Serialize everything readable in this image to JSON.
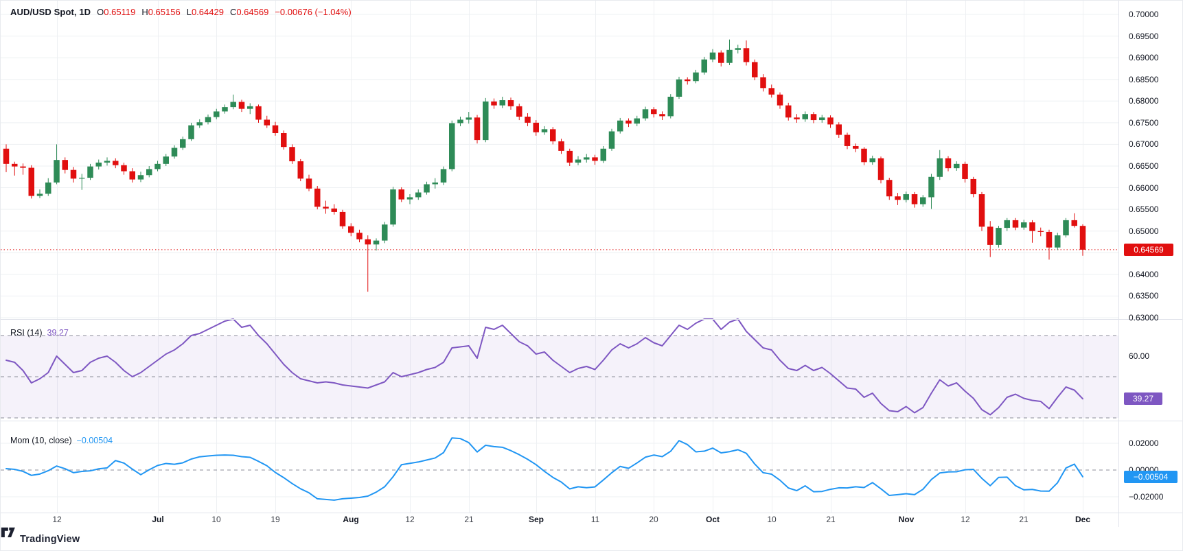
{
  "legend": {
    "symbol": "AUD/USD Spot, 1D",
    "o_label": "O",
    "o_value": "0.65119",
    "h_label": "H",
    "h_value": "0.65156",
    "l_label": "L",
    "l_value": "0.64429",
    "c_label": "C",
    "c_value": "0.64569",
    "change": "−0.00676 (−1.04%)"
  },
  "rsi_pane": {
    "label": "RSI (14)",
    "value": "39.27",
    "badge": "39.27",
    "axis_label": "60.00"
  },
  "mom_pane": {
    "label": "Mom (10, close)",
    "value": "−0.00504",
    "badge": "−0.00504"
  },
  "price_axis": {
    "badge": "0.64569",
    "labels": [
      {
        "text": "0.70000",
        "value": 0.7
      },
      {
        "text": "0.69500",
        "value": 0.695
      },
      {
        "text": "0.69000",
        "value": 0.69
      },
      {
        "text": "0.68500",
        "value": 0.685
      },
      {
        "text": "0.68000",
        "value": 0.68
      },
      {
        "text": "0.67500",
        "value": 0.675
      },
      {
        "text": "0.67000",
        "value": 0.67
      },
      {
        "text": "0.66500",
        "value": 0.665
      },
      {
        "text": "0.66000",
        "value": 0.66
      },
      {
        "text": "0.65500",
        "value": 0.655
      },
      {
        "text": "0.65000",
        "value": 0.65
      },
      {
        "text": "0.64000",
        "value": 0.64
      },
      {
        "text": "0.63500",
        "value": 0.635
      },
      {
        "text": "0.63000",
        "value": 0.63
      }
    ]
  },
  "mom_axis": [
    {
      "text": "0.02000",
      "value": 0.02
    },
    {
      "text": "0.00000",
      "value": 0.0
    },
    {
      "text": "−0.02000",
      "value": -0.02
    }
  ],
  "footer": {
    "brand": "TradingView"
  },
  "colors": {
    "up": "#2e8b57",
    "down": "#e10f0f",
    "rsi": "#7e57c2",
    "rsi_band": "rgba(126,87,194,0.08)",
    "mom": "#2196f3",
    "grid": "#eef0f3",
    "dashed": "#8b8e98",
    "text": "#131722",
    "divider": "#e0e3eb"
  },
  "chart_data": {
    "type": "candlestick",
    "title": "AUD/USD Spot, 1D",
    "symbol": "AUD/USD Spot",
    "timeframe": "1D",
    "last_ohlc": {
      "open": 0.65119,
      "high": 0.65156,
      "low": 0.64429,
      "close": 0.64569,
      "change": -0.00676,
      "change_pct": -1.04
    },
    "price_range": [
      0.63,
      0.7
    ],
    "price_line": 0.64569,
    "legend_position": "top-left",
    "grid": true,
    "time_labels": [
      {
        "text": "12",
        "index": 6,
        "month": false
      },
      {
        "text": "Jul",
        "index": 18,
        "month": true
      },
      {
        "text": "10",
        "index": 25,
        "month": false
      },
      {
        "text": "19",
        "index": 32,
        "month": false
      },
      {
        "text": "Aug",
        "index": 41,
        "month": true
      },
      {
        "text": "12",
        "index": 48,
        "month": false
      },
      {
        "text": "21",
        "index": 55,
        "month": false
      },
      {
        "text": "Sep",
        "index": 63,
        "month": true
      },
      {
        "text": "11",
        "index": 70,
        "month": false
      },
      {
        "text": "20",
        "index": 77,
        "month": false
      },
      {
        "text": "Oct",
        "index": 84,
        "month": true
      },
      {
        "text": "10",
        "index": 91,
        "month": false
      },
      {
        "text": "21",
        "index": 98,
        "month": false
      },
      {
        "text": "Nov",
        "index": 107,
        "month": true
      },
      {
        "text": "12",
        "index": 114,
        "month": false
      },
      {
        "text": "21",
        "index": 121,
        "month": false
      },
      {
        "text": "Dec",
        "index": 128,
        "month": true
      }
    ],
    "candles": [
      [
        0.669,
        0.67,
        0.6636,
        0.6655
      ],
      [
        0.6655,
        0.666,
        0.6628,
        0.6649
      ],
      [
        0.6649,
        0.6656,
        0.663,
        0.6646
      ],
      [
        0.6646,
        0.6652,
        0.6575,
        0.6581
      ],
      [
        0.6581,
        0.6596,
        0.6576,
        0.6586
      ],
      [
        0.6586,
        0.6622,
        0.6581,
        0.6612
      ],
      [
        0.6612,
        0.67,
        0.6608,
        0.6664
      ],
      [
        0.6664,
        0.667,
        0.6633,
        0.6641
      ],
      [
        0.6641,
        0.6648,
        0.6612,
        0.6621
      ],
      [
        0.6621,
        0.6632,
        0.6595,
        0.6623
      ],
      [
        0.6623,
        0.6655,
        0.6618,
        0.6649
      ],
      [
        0.6649,
        0.6665,
        0.6642,
        0.6658
      ],
      [
        0.6658,
        0.667,
        0.6651,
        0.6662
      ],
      [
        0.6662,
        0.6668,
        0.6645,
        0.6652
      ],
      [
        0.6652,
        0.6658,
        0.663,
        0.6638
      ],
      [
        0.6638,
        0.6645,
        0.6612,
        0.6619
      ],
      [
        0.6619,
        0.6637,
        0.6613,
        0.6629
      ],
      [
        0.6629,
        0.665,
        0.6624,
        0.6643
      ],
      [
        0.6643,
        0.6662,
        0.6638,
        0.6655
      ],
      [
        0.6655,
        0.6678,
        0.665,
        0.6672
      ],
      [
        0.6672,
        0.6698,
        0.6667,
        0.6692
      ],
      [
        0.6692,
        0.6718,
        0.6687,
        0.6712
      ],
      [
        0.6712,
        0.675,
        0.6708,
        0.6744
      ],
      [
        0.6744,
        0.6758,
        0.6738,
        0.6751
      ],
      [
        0.6751,
        0.6769,
        0.6746,
        0.6763
      ],
      [
        0.6763,
        0.6782,
        0.6758,
        0.6776
      ],
      [
        0.6776,
        0.6792,
        0.6771,
        0.6786
      ],
      [
        0.6786,
        0.6815,
        0.6781,
        0.6798
      ],
      [
        0.6798,
        0.6803,
        0.6775,
        0.6782
      ],
      [
        0.6782,
        0.6795,
        0.677,
        0.6788
      ],
      [
        0.6788,
        0.6792,
        0.675,
        0.6757
      ],
      [
        0.6757,
        0.6766,
        0.6738,
        0.6744
      ],
      [
        0.6744,
        0.6752,
        0.672,
        0.6726
      ],
      [
        0.6726,
        0.6732,
        0.6688,
        0.6694
      ],
      [
        0.6694,
        0.67,
        0.6655,
        0.6661
      ],
      [
        0.6661,
        0.6666,
        0.6615,
        0.6621
      ],
      [
        0.6621,
        0.663,
        0.6592,
        0.6598
      ],
      [
        0.6598,
        0.6604,
        0.655,
        0.6556
      ],
      [
        0.6556,
        0.657,
        0.654,
        0.6552
      ],
      [
        0.6552,
        0.6562,
        0.6538,
        0.6544
      ],
      [
        0.6544,
        0.6549,
        0.6505,
        0.6511
      ],
      [
        0.6511,
        0.6518,
        0.6488,
        0.6496
      ],
      [
        0.6496,
        0.6503,
        0.6474,
        0.6481
      ],
      [
        0.6481,
        0.649,
        0.636,
        0.6469
      ],
      [
        0.6469,
        0.6483,
        0.6455,
        0.6478
      ],
      [
        0.6478,
        0.6521,
        0.6472,
        0.6515
      ],
      [
        0.6515,
        0.6602,
        0.651,
        0.6596
      ],
      [
        0.6596,
        0.6601,
        0.6567,
        0.6573
      ],
      [
        0.6573,
        0.6585,
        0.6562,
        0.6578
      ],
      [
        0.6578,
        0.6596,
        0.6572,
        0.6589
      ],
      [
        0.6589,
        0.6614,
        0.6584,
        0.6608
      ],
      [
        0.6608,
        0.6622,
        0.6598,
        0.6612
      ],
      [
        0.6612,
        0.6649,
        0.6606,
        0.6643
      ],
      [
        0.6643,
        0.6755,
        0.6638,
        0.6749
      ],
      [
        0.6749,
        0.6764,
        0.6742,
        0.6757
      ],
      [
        0.6757,
        0.6775,
        0.6748,
        0.6762
      ],
      [
        0.6762,
        0.6768,
        0.6702,
        0.671
      ],
      [
        0.671,
        0.6807,
        0.6705,
        0.6799
      ],
      [
        0.6799,
        0.6806,
        0.6782,
        0.679
      ],
      [
        0.679,
        0.681,
        0.6784,
        0.6802
      ],
      [
        0.6802,
        0.6808,
        0.678,
        0.6788
      ],
      [
        0.6788,
        0.6794,
        0.6756,
        0.6764
      ],
      [
        0.6764,
        0.6772,
        0.6742,
        0.675
      ],
      [
        0.675,
        0.6756,
        0.672,
        0.6728
      ],
      [
        0.6728,
        0.6742,
        0.6722,
        0.6735
      ],
      [
        0.6735,
        0.674,
        0.67,
        0.6707
      ],
      [
        0.6707,
        0.6713,
        0.6678,
        0.6685
      ],
      [
        0.6685,
        0.669,
        0.665,
        0.6658
      ],
      [
        0.6658,
        0.6673,
        0.6652,
        0.6665
      ],
      [
        0.6665,
        0.6678,
        0.6658,
        0.667
      ],
      [
        0.667,
        0.6676,
        0.6653,
        0.6662
      ],
      [
        0.6662,
        0.6696,
        0.6657,
        0.669
      ],
      [
        0.669,
        0.6736,
        0.6685,
        0.673
      ],
      [
        0.673,
        0.6761,
        0.6725,
        0.6755
      ],
      [
        0.6755,
        0.676,
        0.674,
        0.6748
      ],
      [
        0.6748,
        0.6766,
        0.6742,
        0.676
      ],
      [
        0.676,
        0.6787,
        0.6755,
        0.6781
      ],
      [
        0.6781,
        0.6786,
        0.6762,
        0.677
      ],
      [
        0.677,
        0.6776,
        0.6756,
        0.6765
      ],
      [
        0.6765,
        0.6816,
        0.676,
        0.681
      ],
      [
        0.681,
        0.6856,
        0.6805,
        0.685
      ],
      [
        0.685,
        0.6855,
        0.6838,
        0.6846
      ],
      [
        0.6846,
        0.6872,
        0.6841,
        0.6866
      ],
      [
        0.6866,
        0.6902,
        0.6861,
        0.6896
      ],
      [
        0.6896,
        0.692,
        0.689,
        0.6912
      ],
      [
        0.6912,
        0.6917,
        0.688,
        0.6888
      ],
      [
        0.6888,
        0.6942,
        0.6883,
        0.6918
      ],
      [
        0.6918,
        0.693,
        0.691,
        0.6922
      ],
      [
        0.6922,
        0.694,
        0.6882,
        0.689
      ],
      [
        0.689,
        0.6896,
        0.6848,
        0.6855
      ],
      [
        0.6855,
        0.6862,
        0.6822,
        0.683
      ],
      [
        0.683,
        0.6838,
        0.6808,
        0.6815
      ],
      [
        0.6815,
        0.682,
        0.6782,
        0.679
      ],
      [
        0.679,
        0.6796,
        0.6755,
        0.6762
      ],
      [
        0.6762,
        0.677,
        0.675,
        0.6758
      ],
      [
        0.6758,
        0.6776,
        0.6752,
        0.677
      ],
      [
        0.677,
        0.6775,
        0.6749,
        0.6756
      ],
      [
        0.6756,
        0.6768,
        0.675,
        0.6762
      ],
      [
        0.6762,
        0.6767,
        0.6738,
        0.6746
      ],
      [
        0.6746,
        0.6751,
        0.6715,
        0.6722
      ],
      [
        0.6722,
        0.6727,
        0.6689,
        0.6696
      ],
      [
        0.6696,
        0.6702,
        0.6682,
        0.669
      ],
      [
        0.669,
        0.6694,
        0.6652,
        0.6659
      ],
      [
        0.6659,
        0.6674,
        0.6653,
        0.6668
      ],
      [
        0.6668,
        0.6672,
        0.661,
        0.6618
      ],
      [
        0.6618,
        0.6623,
        0.6572,
        0.658
      ],
      [
        0.658,
        0.6588,
        0.656,
        0.6572
      ],
      [
        0.6572,
        0.6591,
        0.6566,
        0.6585
      ],
      [
        0.6585,
        0.659,
        0.6554,
        0.6562
      ],
      [
        0.6562,
        0.6583,
        0.6556,
        0.6578
      ],
      [
        0.6578,
        0.6632,
        0.6551,
        0.6625
      ],
      [
        0.6625,
        0.6687,
        0.6618,
        0.6668
      ],
      [
        0.6668,
        0.6673,
        0.6638,
        0.6645
      ],
      [
        0.6645,
        0.6661,
        0.6639,
        0.6655
      ],
      [
        0.6655,
        0.666,
        0.6612,
        0.662
      ],
      [
        0.662,
        0.6625,
        0.6578,
        0.6585
      ],
      [
        0.6585,
        0.659,
        0.65,
        0.651
      ],
      [
        0.651,
        0.6523,
        0.644,
        0.6468
      ],
      [
        0.6468,
        0.6512,
        0.6462,
        0.65073
      ],
      [
        0.65073,
        0.653,
        0.65,
        0.6525
      ],
      [
        0.6525,
        0.653,
        0.6502,
        0.6508
      ],
      [
        0.6508,
        0.6526,
        0.6503,
        0.652
      ],
      [
        0.652,
        0.6525,
        0.6473,
        0.65
      ],
      [
        0.65,
        0.6508,
        0.6488,
        0.6498
      ],
      [
        0.6498,
        0.6503,
        0.6434,
        0.6462
      ],
      [
        0.6462,
        0.6496,
        0.6456,
        0.649
      ],
      [
        0.649,
        0.653,
        0.6485,
        0.6525
      ],
      [
        0.6525,
        0.6541,
        0.6508,
        0.65119
      ],
      [
        0.65119,
        0.65156,
        0.64429,
        0.64569
      ]
    ],
    "rsi": {
      "name": "RSI (14)",
      "current": 39.27,
      "levels": [
        70,
        50,
        30
      ],
      "values": [
        58,
        57,
        53,
        47,
        49,
        52,
        60,
        56,
        52,
        53,
        57,
        59,
        60,
        57,
        53,
        50,
        52,
        55,
        58,
        61,
        63,
        66,
        70,
        71,
        73,
        75,
        77,
        78,
        74,
        75,
        70,
        66,
        61,
        56,
        52,
        49,
        48,
        47,
        47.5,
        47,
        46,
        45.5,
        45,
        44.5,
        46,
        47.5,
        52,
        50,
        51,
        52,
        53.5,
        54.5,
        57,
        64,
        64.5,
        65,
        59,
        74,
        73,
        75,
        71,
        67,
        65,
        61,
        62,
        58,
        55,
        52,
        54,
        55,
        53.5,
        58,
        63,
        66,
        64,
        66,
        69,
        66.5,
        65,
        70,
        75,
        73,
        76,
        78,
        78,
        73,
        76.5,
        78,
        72,
        68,
        64,
        63,
        58,
        54,
        53,
        55.5,
        53,
        54.5,
        51.5,
        48,
        44.5,
        44,
        40,
        42,
        37,
        33.5,
        33,
        35.5,
        32.5,
        35,
        42,
        48.5,
        45.5,
        47,
        43,
        39.5,
        34,
        31.5,
        35,
        40,
        41.5,
        39.5,
        38.5,
        38,
        34.5,
        40,
        45,
        43.5,
        39.27
      ]
    },
    "mom": {
      "name": "Mom (10, close)",
      "current": -0.00504,
      "zero_line": 0,
      "axis_range": [
        -0.02,
        0.02
      ],
      "values": [
        0.001,
        0.0005,
        -0.001,
        -0.004,
        -0.003,
        -0.0005,
        0.003,
        0.001,
        -0.002,
        -0.001,
        -0.0006,
        0.0009,
        0.0016,
        0.0071,
        0.0052,
        0.0007,
        -0.0035,
        0.0002,
        0.0034,
        0.0049,
        0.0043,
        0.0054,
        0.0082,
        0.0099,
        0.0105,
        0.011,
        0.0112,
        0.011,
        0.01,
        0.0095,
        0.0065,
        0.0032,
        -0.0018,
        -0.0057,
        -0.0101,
        -0.014,
        -0.017,
        -0.0215,
        -0.022,
        -0.0225,
        -0.0215,
        -0.021,
        -0.0205,
        -0.0195,
        -0.0165,
        -0.0125,
        -0.005,
        0.004,
        0.005,
        0.006,
        0.0075,
        0.009,
        0.013,
        0.024,
        0.0235,
        0.0205,
        0.0135,
        0.0185,
        0.0175,
        0.017,
        0.0145,
        0.0115,
        0.008,
        0.004,
        -0.001,
        -0.0055,
        -0.009,
        -0.0141,
        -0.0125,
        -0.0132,
        -0.0126,
        -0.0074,
        -0.002,
        0.0027,
        0.0013,
        0.0053,
        0.0096,
        0.0112,
        0.01,
        0.014,
        0.022,
        0.019,
        0.0136,
        0.0141,
        0.0164,
        0.0128,
        0.0137,
        0.0152,
        0.0125,
        0.0045,
        -0.002,
        -0.0031,
        -0.0076,
        -0.0134,
        -0.0154,
        -0.0118,
        -0.0162,
        -0.016,
        -0.0144,
        -0.0133,
        -0.0134,
        -0.0125,
        -0.0131,
        -0.0094,
        -0.014,
        -0.019,
        -0.0184,
        -0.0177,
        -0.0184,
        -0.0144,
        -0.0071,
        -0.0022,
        -0.0014,
        -0.0013,
        0.0002,
        0.0005,
        -0.0062,
        -0.0117,
        -0.0055,
        -0.0053,
        -0.0117,
        -0.0148,
        -0.0145,
        -0.0157,
        -0.0158,
        -0.0095,
        0.0015,
        0.0044,
        -0.00504
      ]
    }
  }
}
